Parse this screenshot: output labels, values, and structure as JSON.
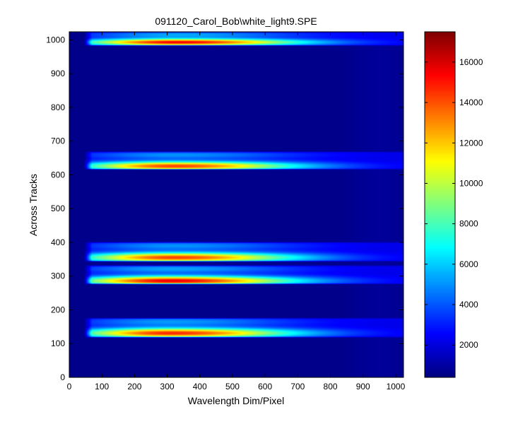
{
  "chart_data": {
    "type": "heatmap",
    "title": "091120_Carol_Bob\\white_light9.SPE",
    "xlabel": "Wavelength Dim/Pixel",
    "ylabel": "Across Tracks",
    "xlim": [
      0,
      1024
    ],
    "ylim": [
      0,
      1024
    ],
    "x_ticks": [
      0,
      100,
      200,
      300,
      400,
      500,
      600,
      700,
      800,
      900,
      1000
    ],
    "y_ticks": [
      0,
      100,
      200,
      300,
      400,
      500,
      600,
      700,
      800,
      900,
      1000
    ],
    "colorbar": {
      "colormap": "jet",
      "range": [
        400,
        17500
      ],
      "ticks": [
        2000,
        4000,
        6000,
        8000,
        10000,
        12000,
        14000,
        16000
      ]
    },
    "background_value": 600,
    "x_start": 45,
    "tracks": [
      {
        "y_low": 117,
        "y_high": 177,
        "peak_x": 310,
        "peak": 15500,
        "peak_y": 131
      },
      {
        "y_low": 275,
        "y_high": 333,
        "peak_x": 310,
        "peak": 16500,
        "peak_y": 286
      },
      {
        "y_low": 342,
        "y_high": 402,
        "peak_x": 320,
        "peak": 15000,
        "peak_y": 355
      },
      {
        "y_low": 615,
        "y_high": 670,
        "peak_x": 320,
        "peak": 15000,
        "peak_y": 626
      },
      {
        "y_low": 982,
        "y_high": 1024,
        "peak_x": 330,
        "peak": 16500,
        "peak_y": 993
      }
    ]
  }
}
